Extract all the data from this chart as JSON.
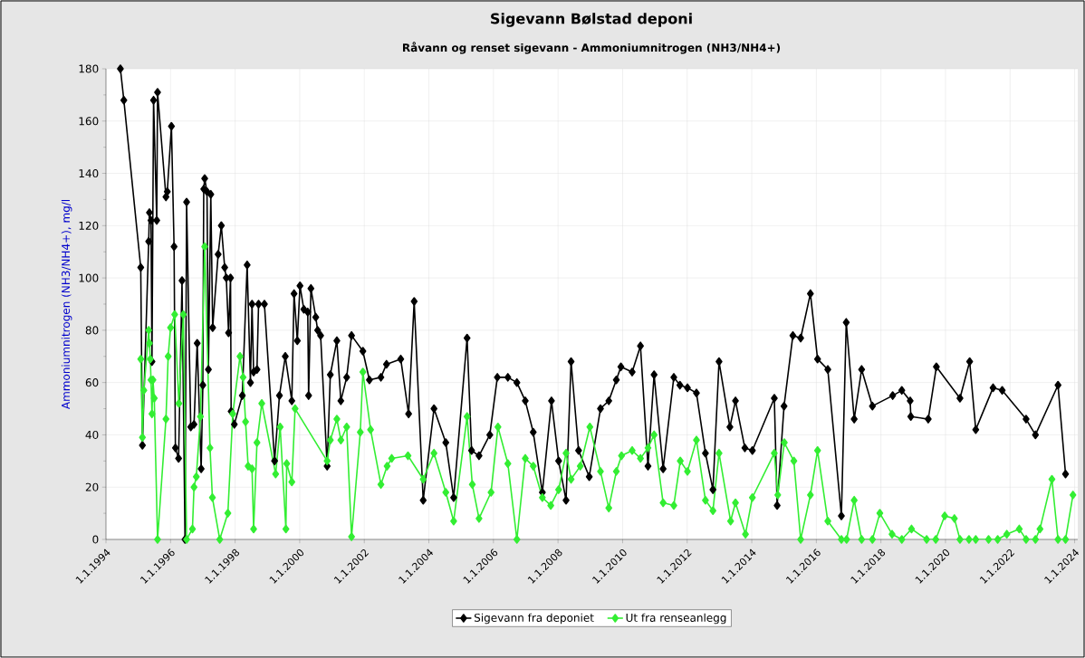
{
  "chart_data": {
    "type": "line",
    "title": "Sigevann Bølstad deponi",
    "subtitle": "Råvann og renset sigevann - Ammoniumnitrogen (NH3/NH4+)",
    "ylabel": "Ammoniumnitrogen (NH3/NH4+), mg/l",
    "xlim": [
      "1994-01-01",
      "2024-02-05"
    ],
    "ylim": [
      0,
      180
    ],
    "xticks": [
      {
        "value": "1994-01-01",
        "label": "1.1.1994"
      },
      {
        "value": "1996-01-01",
        "label": "1.1.1996"
      },
      {
        "value": "1998-01-01",
        "label": "1.1.1998"
      },
      {
        "value": "2000-01-01",
        "label": "1.1.2000"
      },
      {
        "value": "2002-01-01",
        "label": "1.1.2002"
      },
      {
        "value": "2004-01-01",
        "label": "1.1.2004"
      },
      {
        "value": "2006-01-01",
        "label": "1.1.2006"
      },
      {
        "value": "2008-01-01",
        "label": "1.1.2008"
      },
      {
        "value": "2010-01-01",
        "label": "1.1.2010"
      },
      {
        "value": "2012-01-01",
        "label": "1.1.2012"
      },
      {
        "value": "2014-01-01",
        "label": "1.1.2014"
      },
      {
        "value": "2016-01-01",
        "label": "1.1.2016"
      },
      {
        "value": "2018-01-01",
        "label": "1.1.2018"
      },
      {
        "value": "2020-01-01",
        "label": "1.1.2020"
      },
      {
        "value": "2022-01-01",
        "label": "1.1.2022"
      },
      {
        "value": "2024-01-01",
        "label": "1.1.2024"
      }
    ],
    "yticks": [
      0,
      20,
      40,
      60,
      80,
      100,
      120,
      140,
      160,
      180
    ],
    "grid": true,
    "legend": "bottom",
    "marker": "diamond",
    "line_style": "solid",
    "series": [
      {
        "name": "Sigevann fra deponiet",
        "color": "#000000",
        "x": [
          "1994-06-13",
          "1994-07-22",
          "1995-01-29",
          "1995-02-17",
          "1995-04-29",
          "1995-05-07",
          "1995-05-25",
          "1995-06-05",
          "1995-06-23",
          "1995-07-29",
          "1995-08-07",
          "1995-11-10",
          "1995-11-25",
          "1996-01-11",
          "1996-02-10",
          "1996-02-25",
          "1996-04-01",
          "1996-05-10",
          "1996-06-13",
          "1996-07-01",
          "1996-08-17",
          "1996-09-23",
          "1996-10-29",
          "1996-12-13",
          "1997-01-01",
          "1997-01-11",
          "1997-01-22",
          "1997-02-17",
          "1997-03-05",
          "1997-04-01",
          "1997-04-22",
          "1997-06-23",
          "1997-07-29",
          "1997-09-05",
          "1997-09-23",
          "1997-10-19",
          "1997-11-10",
          "1997-11-17",
          "1997-12-23",
          "1998-03-23",
          "1998-05-17",
          "1998-06-23",
          "1998-07-11",
          "1998-07-29",
          "1998-09-05",
          "1998-09-23",
          "1998-11-28",
          "1999-03-23",
          "1999-05-17",
          "1999-07-22",
          "1999-10-04",
          "1999-10-29",
          "1999-12-05",
          "2000-01-04",
          "2000-02-17",
          "2000-04-01",
          "2000-04-11",
          "2000-05-07",
          "2000-07-01",
          "2000-07-22",
          "2000-08-25",
          "2000-11-07",
          "2000-12-13",
          "2001-02-25",
          "2001-04-11",
          "2001-06-16",
          "2001-08-10",
          "2001-12-16",
          "2002-02-28",
          "2002-07-08",
          "2002-09-09",
          "2003-02-17",
          "2003-05-17",
          "2003-07-19",
          "2003-10-29",
          "2004-02-28",
          "2004-07-11",
          "2004-10-08",
          "2005-03-09",
          "2005-04-29",
          "2005-07-22",
          "2005-11-21",
          "2006-02-14",
          "2006-06-13",
          "2006-09-23",
          "2006-12-27",
          "2007-03-27",
          "2007-07-08",
          "2007-10-19",
          "2008-01-08",
          "2008-04-01",
          "2008-05-28",
          "2008-08-21",
          "2008-12-20",
          "2009-04-26",
          "2009-07-29",
          "2009-10-22",
          "2009-12-13",
          "2010-04-19",
          "2010-07-22",
          "2010-10-15",
          "2010-12-23",
          "2011-04-04",
          "2011-08-03",
          "2011-10-11",
          "2012-01-04",
          "2012-04-15",
          "2012-07-26",
          "2012-10-19",
          "2012-12-27",
          "2013-04-29",
          "2013-07-01",
          "2013-10-15",
          "2014-01-08",
          "2014-09-13",
          "2014-10-15",
          "2015-01-01",
          "2015-04-11",
          "2015-07-08",
          "2015-10-26",
          "2016-01-15",
          "2016-05-10",
          "2016-10-11",
          "2016-12-05",
          "2017-03-05",
          "2017-05-28",
          "2017-09-27",
          "2018-05-14",
          "2018-08-25",
          "2018-11-28",
          "2018-12-05",
          "2019-06-20",
          "2019-09-20",
          "2020-06-13",
          "2020-10-01",
          "2020-12-09",
          "2021-06-23",
          "2021-10-04",
          "2022-07-01",
          "2022-10-15",
          "2023-06-27",
          "2023-09-20"
        ],
        "values": [
          180,
          168,
          104,
          36,
          114,
          125,
          122,
          68,
          168,
          122,
          171,
          131,
          133,
          158,
          112,
          35,
          31,
          99,
          0,
          129,
          43,
          44,
          75,
          27,
          59,
          134,
          138,
          133,
          65,
          132,
          81,
          109,
          120,
          104,
          100,
          79,
          100,
          49,
          44,
          55,
          105,
          60,
          90,
          64,
          65,
          90,
          90,
          30,
          55,
          70,
          53,
          94,
          76,
          97,
          88,
          87,
          55,
          96,
          85,
          80,
          78,
          28,
          63,
          76,
          53,
          62,
          78,
          72,
          61,
          62,
          67,
          69,
          48,
          91,
          15,
          50,
          37,
          16,
          77,
          34,
          32,
          40,
          62,
          62,
          60,
          53,
          41,
          18,
          53,
          30,
          15,
          68,
          34,
          24,
          50,
          53,
          61,
          66,
          64,
          74,
          28,
          63,
          27,
          62,
          59,
          58,
          56,
          33,
          19,
          68,
          43,
          53,
          35,
          34,
          54,
          13,
          51,
          78,
          77,
          94,
          69,
          65,
          9,
          83,
          46,
          65,
          51,
          55,
          57,
          53,
          47,
          46,
          66,
          54,
          68,
          42,
          58,
          57,
          46,
          40,
          59,
          25
        ]
      },
      {
        "name": "Ut fra renseanlegg",
        "color": "#33ee33",
        "x": [
          "1995-01-29",
          "1995-02-17",
          "1995-03-05",
          "1995-04-29",
          "1995-05-07",
          "1995-05-17",
          "1995-05-25",
          "1995-06-05",
          "1995-06-16",
          "1995-07-01",
          "1995-08-07",
          "1995-11-10",
          "1995-12-05",
          "1996-01-01",
          "1996-02-17",
          "1996-04-04",
          "1996-05-25",
          "1996-07-01",
          "1996-09-05",
          "1996-09-23",
          "1996-10-19",
          "1996-12-05",
          "1997-01-22",
          "1997-03-23",
          "1997-04-19",
          "1997-07-11",
          "1997-10-11",
          "1997-12-05",
          "1998-02-25",
          "1998-04-01",
          "1998-04-29",
          "1998-05-28",
          "1998-07-11",
          "1998-07-29",
          "1998-09-05",
          "1998-10-29",
          "1999-04-04",
          "1999-05-25",
          "1999-07-29",
          "1999-08-07",
          "1999-10-04",
          "1999-11-10",
          "2000-11-07",
          "2000-12-13",
          "2001-02-25",
          "2001-04-11",
          "2001-06-16",
          "2001-08-10",
          "2001-11-17",
          "2001-12-16",
          "2002-03-13",
          "2002-07-08",
          "2002-09-16",
          "2002-11-07",
          "2003-05-10",
          "2003-10-29",
          "2004-02-28",
          "2004-07-11",
          "2004-10-08",
          "2005-03-09",
          "2005-05-07",
          "2005-07-22",
          "2005-12-05",
          "2006-02-21",
          "2006-06-13",
          "2006-09-23",
          "2006-12-27",
          "2007-03-27",
          "2007-07-08",
          "2007-10-11",
          "2008-01-08",
          "2008-04-01",
          "2008-05-28",
          "2008-09-09",
          "2008-12-27",
          "2009-04-26",
          "2009-07-29",
          "2009-10-22",
          "2009-12-20",
          "2010-04-19",
          "2010-07-22",
          "2010-10-15",
          "2010-12-23",
          "2011-04-04",
          "2011-08-03",
          "2011-10-15",
          "2012-01-04",
          "2012-04-15",
          "2012-07-26",
          "2012-10-19",
          "2012-12-27",
          "2013-05-07",
          "2013-07-01",
          "2013-10-22",
          "2014-01-08",
          "2014-09-13",
          "2014-10-22",
          "2015-01-04",
          "2015-04-22",
          "2015-07-08",
          "2015-10-26",
          "2016-01-15",
          "2016-05-10",
          "2016-10-11",
          "2016-12-09",
          "2017-03-05",
          "2017-05-28",
          "2017-09-27",
          "2017-12-20",
          "2018-05-07",
          "2018-08-25",
          "2018-12-13",
          "2019-06-02",
          "2019-09-13",
          "2019-12-23",
          "2020-04-11",
          "2020-06-13",
          "2020-09-23",
          "2020-12-09",
          "2021-05-03",
          "2021-08-14",
          "2021-11-25",
          "2022-04-15",
          "2022-07-01",
          "2022-10-15",
          "2022-12-05",
          "2023-04-19",
          "2023-06-27",
          "2023-09-20",
          "2023-12-13"
        ],
        "values": [
          69,
          39,
          57,
          80,
          75,
          69,
          61,
          48,
          61,
          54,
          0,
          46,
          70,
          81,
          86,
          52,
          86,
          0,
          4,
          20,
          24,
          47,
          112,
          35,
          16,
          0,
          10,
          48,
          70,
          62,
          45,
          28,
          27,
          4,
          37,
          52,
          25,
          43,
          4,
          29,
          22,
          50,
          30,
          38,
          46,
          38,
          43,
          1,
          41,
          64,
          42,
          21,
          28,
          31,
          32,
          23,
          33,
          18,
          7,
          47,
          21,
          8,
          18,
          43,
          29,
          0,
          31,
          28,
          16,
          13,
          19,
          33,
          23,
          28,
          43,
          26,
          12,
          26,
          32,
          34,
          31,
          35,
          40,
          14,
          13,
          30,
          26,
          38,
          15,
          11,
          33,
          7,
          14,
          2,
          16,
          33,
          17,
          37,
          30,
          0,
          17,
          34,
          7,
          0,
          0,
          15,
          0,
          0,
          10,
          2,
          0,
          4,
          0,
          0,
          9,
          8,
          0,
          0,
          0,
          0,
          0,
          2,
          4,
          0,
          0,
          4,
          23,
          0,
          0,
          17
        ]
      }
    ]
  }
}
